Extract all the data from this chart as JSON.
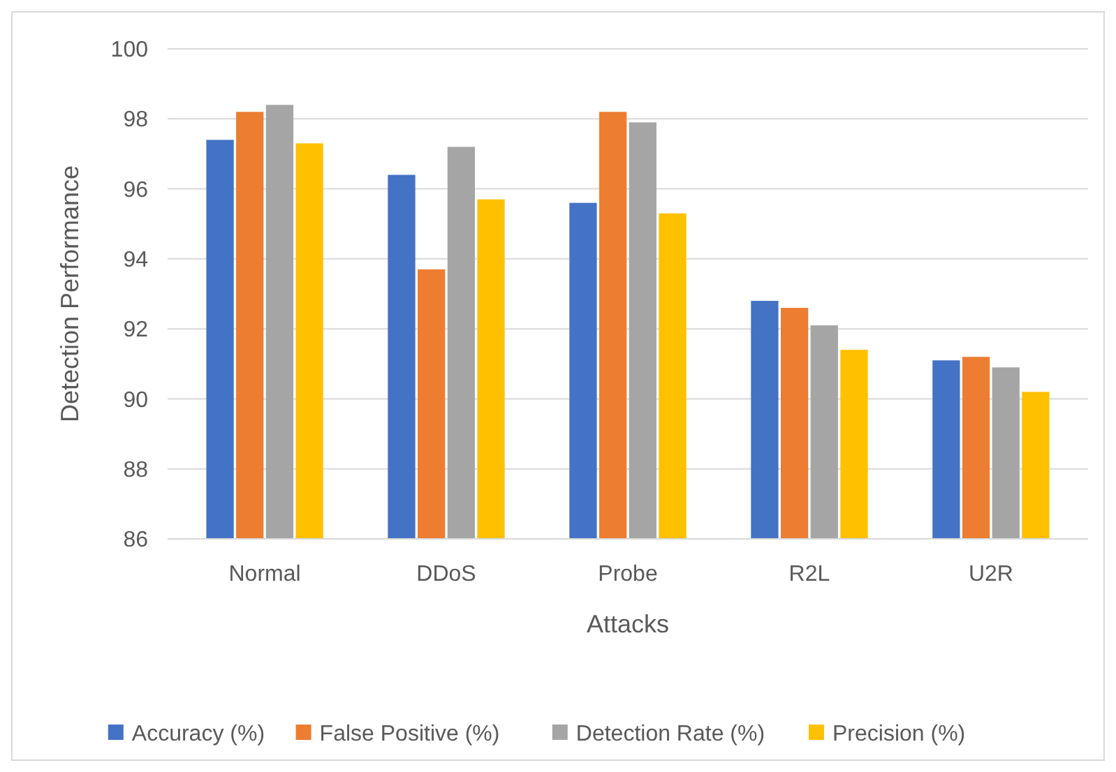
{
  "chart_data": {
    "type": "bar",
    "xlabel": "Attacks",
    "ylabel": "Detection Performance",
    "categories": [
      "Normal",
      "DDoS",
      "Probe",
      "R2L",
      "U2R"
    ],
    "series": [
      {
        "name": "Accuracy (%)",
        "color": "#4472c4",
        "values": [
          97.4,
          96.4,
          95.6,
          92.8,
          91.1
        ]
      },
      {
        "name": "False Positive (%)",
        "color": "#ed7d31",
        "values": [
          98.2,
          93.7,
          98.2,
          92.6,
          91.2
        ]
      },
      {
        "name": "Detection Rate (%)",
        "color": "#a5a5a5",
        "values": [
          98.4,
          97.2,
          97.9,
          92.1,
          90.9
        ]
      },
      {
        "name": "Precision (%)",
        "color": "#ffc000",
        "values": [
          97.3,
          95.7,
          95.3,
          91.4,
          90.2
        ]
      }
    ],
    "ylim": [
      86,
      100
    ],
    "yticks": [
      86,
      88,
      90,
      92,
      94,
      96,
      98,
      100
    ],
    "grid": "y",
    "legend": "bottom"
  }
}
